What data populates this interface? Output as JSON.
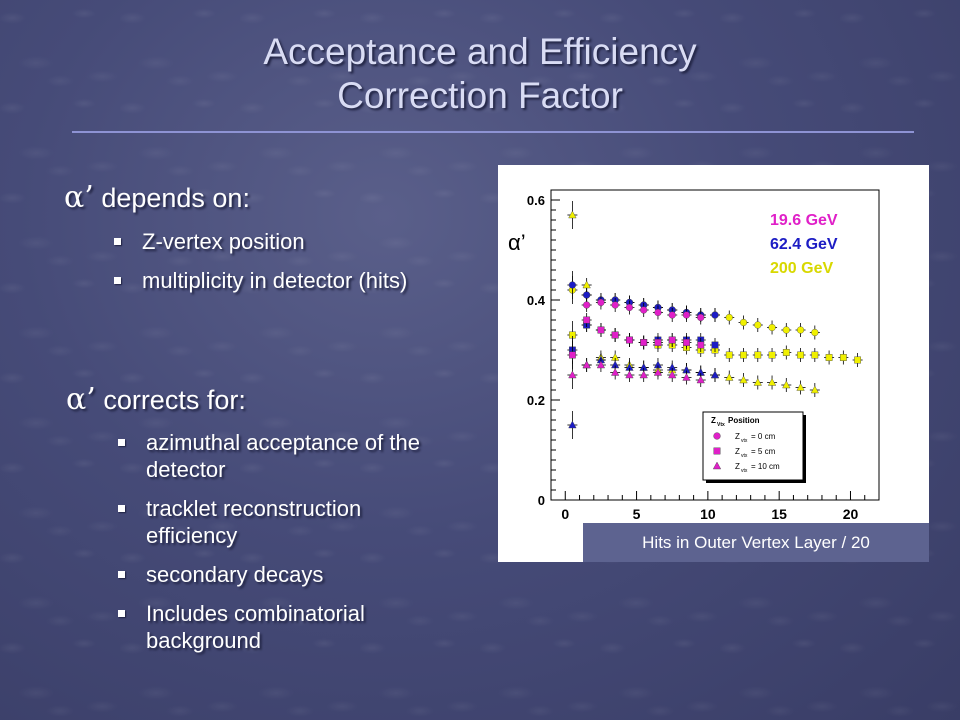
{
  "slide": {
    "title_line1": "Acceptance and Efficiency",
    "title_line2": "Correction Factor",
    "section1": {
      "symbol": "α’",
      "heading": "depends on:",
      "bullets": [
        "Z-vertex position",
        "multiplicity in detector (hits)"
      ]
    },
    "section2": {
      "symbol": "α’",
      "heading": "corrects for:",
      "bullets": [
        "azimuthal acceptance of the detector",
        "tracklet reconstruction efficiency",
        "secondary decays",
        "Includes combinatorial background"
      ]
    }
  },
  "colors": {
    "magenta": "#e020c8",
    "blue": "#1c1cc4",
    "yellow": "#f0f000"
  },
  "chart_data": {
    "type": "scatter",
    "ylabel": "α’",
    "xlabel": "Hits in Outer Vertex Layer / 20",
    "xlim": [
      -1,
      22
    ],
    "ylim": [
      0,
      0.62
    ],
    "xticks": [
      0,
      5,
      10,
      15,
      20
    ],
    "yticks": [
      0,
      0.2,
      0.4,
      0.6
    ],
    "ytick_labels": [
      "0",
      "0.2",
      "0.4",
      "0.6"
    ],
    "energy_labels": [
      {
        "text": "19.6 GeV",
        "color": "#e020c8"
      },
      {
        "text": "62.4 GeV",
        "color": "#1c1cc4"
      },
      {
        "text": "200 GeV",
        "color": "#d8d800"
      }
    ],
    "legend": {
      "title_main": "Z",
      "title_sub": "Vtx",
      "title_rest": "Position",
      "placement": "bottom-center",
      "entries": [
        {
          "marker": "circle",
          "color": "#e020c8",
          "main": "Z",
          "sub": "vtx",
          "rest": "= 0 cm"
        },
        {
          "marker": "square",
          "color": "#e020c8",
          "main": "Z",
          "sub": "vtx",
          "rest": "= 5 cm"
        },
        {
          "marker": "triangle",
          "color": "#e020c8",
          "main": "Z",
          "sub": "vtx",
          "rest": "= 10 cm"
        }
      ]
    },
    "series": [
      {
        "color": "#f0f000",
        "marker": "circle",
        "x": [
          0.5,
          1.5,
          2.5,
          3.5,
          4.5,
          5.5,
          6.5,
          7.5,
          8.5,
          9.5,
          10.5,
          11.5,
          12.5,
          13.5,
          14.5,
          15.5,
          16.5,
          17.5
        ],
        "y": [
          0.42,
          0.41,
          0.4,
          0.4,
          0.395,
          0.39,
          0.385,
          0.38,
          0.375,
          0.37,
          0.37,
          0.365,
          0.355,
          0.35,
          0.345,
          0.34,
          0.34,
          0.335
        ]
      },
      {
        "color": "#1c1cc4",
        "marker": "circle",
        "x": [
          0.5,
          1.5,
          2.5,
          3.5,
          4.5,
          5.5,
          6.5,
          7.5,
          8.5,
          9.5,
          10.5
        ],
        "y": [
          0.43,
          0.41,
          0.4,
          0.4,
          0.395,
          0.39,
          0.385,
          0.38,
          0.375,
          0.37,
          0.37
        ]
      },
      {
        "color": "#e020c8",
        "marker": "circle",
        "x": [
          1.5,
          2.5,
          3.5,
          4.5,
          5.5,
          6.5,
          7.5,
          8.5,
          9.5
        ],
        "y": [
          0.39,
          0.395,
          0.39,
          0.385,
          0.38,
          0.375,
          0.37,
          0.37,
          0.365
        ]
      },
      {
        "color": "#f0f000",
        "marker": "square",
        "x": [
          0.5,
          1.5,
          2.5,
          3.5,
          4.5,
          5.5,
          6.5,
          7.5,
          8.5,
          9.5,
          10.5,
          11.5,
          12.5,
          13.5,
          14.5,
          15.5,
          16.5,
          17.5,
          18.5,
          19.5,
          20.5
        ],
        "y": [
          0.33,
          0.35,
          0.34,
          0.33,
          0.32,
          0.315,
          0.31,
          0.31,
          0.305,
          0.3,
          0.3,
          0.29,
          0.29,
          0.29,
          0.29,
          0.295,
          0.29,
          0.29,
          0.285,
          0.285,
          0.28
        ]
      },
      {
        "color": "#1c1cc4",
        "marker": "square",
        "x": [
          0.5,
          1.5,
          2.5,
          3.5,
          4.5,
          5.5,
          6.5,
          7.5,
          8.5,
          9.5,
          10.5
        ],
        "y": [
          0.3,
          0.35,
          0.34,
          0.33,
          0.32,
          0.315,
          0.32,
          0.32,
          0.32,
          0.32,
          0.31
        ]
      },
      {
        "color": "#e020c8",
        "marker": "square",
        "x": [
          0.5,
          1.5,
          2.5,
          3.5,
          4.5,
          5.5,
          6.5,
          7.5,
          8.5,
          9.5
        ],
        "y": [
          0.29,
          0.36,
          0.34,
          0.33,
          0.32,
          0.315,
          0.315,
          0.32,
          0.315,
          0.31
        ]
      },
      {
        "color": "#f0f000",
        "marker": "triangle",
        "x": [
          0.5,
          1.5,
          2.5,
          3.5,
          4.5,
          5.5,
          6.5,
          7.5,
          8.5,
          9.5,
          10.5,
          11.5,
          12.5,
          13.5,
          14.5,
          15.5,
          16.5,
          17.5
        ],
        "y": [
          0.57,
          0.43,
          0.285,
          0.285,
          0.27,
          0.265,
          0.26,
          0.26,
          0.26,
          0.255,
          0.25,
          0.245,
          0.24,
          0.235,
          0.235,
          0.23,
          0.225,
          0.22
        ]
      },
      {
        "color": "#1c1cc4",
        "marker": "triangle",
        "x": [
          0.5,
          1.5,
          2.5,
          3.5,
          4.5,
          5.5,
          6.5,
          7.5,
          8.5,
          9.5,
          10.5
        ],
        "y": [
          0.15,
          0.27,
          0.28,
          0.27,
          0.265,
          0.265,
          0.27,
          0.265,
          0.26,
          0.255,
          0.25
        ]
      },
      {
        "color": "#e020c8",
        "marker": "triangle",
        "x": [
          0.5,
          1.5,
          2.5,
          3.5,
          4.5,
          5.5,
          6.5,
          7.5,
          8.5,
          9.5
        ],
        "y": [
          0.25,
          0.27,
          0.27,
          0.255,
          0.25,
          0.25,
          0.255,
          0.25,
          0.245,
          0.24
        ]
      }
    ]
  }
}
